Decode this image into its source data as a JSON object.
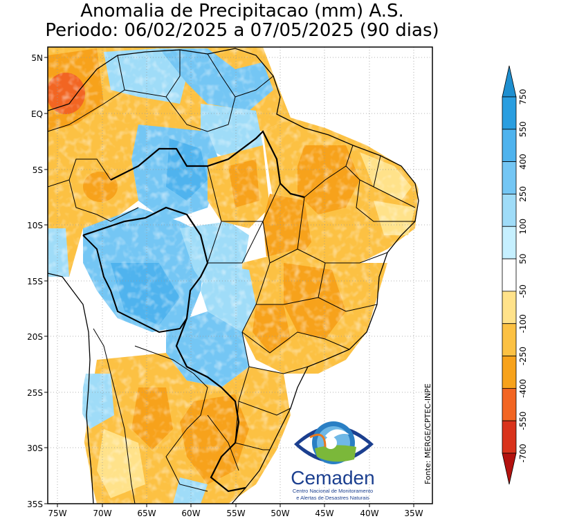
{
  "title": {
    "line1": "Anomalia de Precipitacao (mm) A.S.",
    "line2": "Periodo: 06/02/2025 a 07/05/2025 (90 dias)"
  },
  "axes": {
    "lat_labels": [
      "5N",
      "EQ",
      "5S",
      "10S",
      "15S",
      "20S",
      "25S",
      "30S",
      "35S"
    ],
    "lon_labels": [
      "75W",
      "70W",
      "65W",
      "60W",
      "55W",
      "50W",
      "45W",
      "40W",
      "35W"
    ]
  },
  "source": "Fonte: MERGE/CPTEC-INPE",
  "logo": {
    "name": "Cemaden",
    "subtitle_line1": "Centro Nacional de Monitoramento",
    "subtitle_line2": "e Alertas de Desastres Naturais"
  },
  "colorbar": {
    "labels": [
      "750",
      "550",
      "400",
      "250",
      "100",
      "50",
      "-50",
      "-100",
      "-250",
      "-400",
      "-550",
      "-700"
    ],
    "colors": [
      "#1e8fd0",
      "#2a9ee0",
      "#4fb3ee",
      "#74c6f4",
      "#9fdcf8",
      "#c6f0ff",
      "#ffffff",
      "#ffe28a",
      "#fcc143",
      "#f7a21b",
      "#f26522",
      "#d9331c",
      "#b3120f"
    ]
  },
  "anomaly_colors": {
    "dry_strong": "#f26522",
    "dry_moderate": "#f7a21b",
    "dry_light": "#fcc143",
    "dry_slight": "#ffe28a",
    "wet_slight": "#c6f0ff",
    "wet_light": "#9fdcf8",
    "wet_moderate": "#74c6f4",
    "wet_strong": "#4fb3ee"
  }
}
